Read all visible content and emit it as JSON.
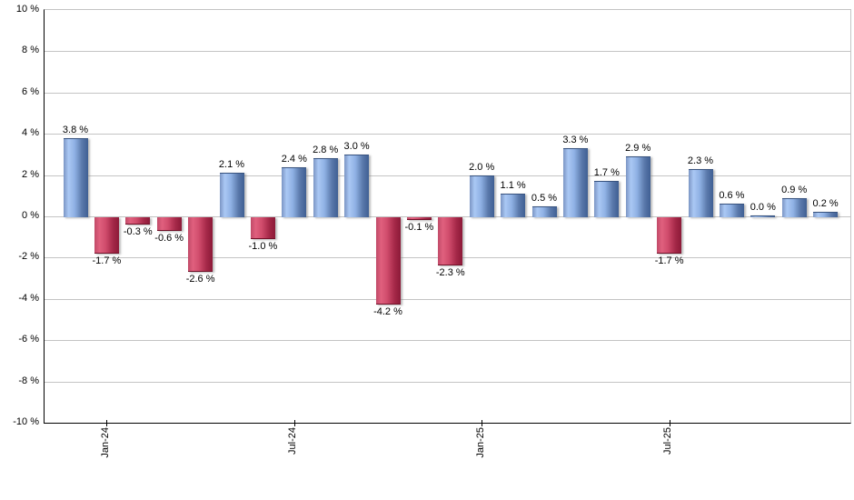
{
  "chart_data": {
    "type": "bar",
    "title": "",
    "unit": "%",
    "values": [
      3.8,
      -1.7,
      -0.3,
      -0.6,
      -2.6,
      2.1,
      -1.0,
      2.4,
      2.8,
      3.0,
      -4.2,
      -0.1,
      -2.3,
      2.0,
      1.1,
      0.5,
      3.3,
      1.7,
      2.9,
      -1.7,
      2.3,
      0.6,
      0.0,
      0.9,
      0.2
    ],
    "bar_labels": [
      "3.8 %",
      "-1.7 %",
      "-0.3 %",
      "-0.6 %",
      "-2.6 %",
      "2.1 %",
      "-1.0 %",
      "2.4 %",
      "2.8 %",
      "3.0 %",
      "-4.2 %",
      "-0.1 %",
      "-2.3 %",
      "2.0 %",
      "1.1 %",
      "0.5 %",
      "3.3 %",
      "1.7 %",
      "2.9 %",
      "-1.7 %",
      "2.3 %",
      "0.6 %",
      "0.0 %",
      "0.9 %",
      "0.2 %"
    ],
    "x_ticks": [
      {
        "label": "Jan-24",
        "bar_index": 1
      },
      {
        "label": "Jul-24",
        "bar_index": 7
      },
      {
        "label": "Jan-25",
        "bar_index": 13
      },
      {
        "label": "Jul-25",
        "bar_index": 19
      }
    ],
    "y_tick_labels": [
      "10 %",
      "8 %",
      "6 %",
      "4 %",
      "2 %",
      "0 %",
      "-2 %",
      "-4 %",
      "-6 %",
      "-8 %",
      "-10 %"
    ],
    "ylim": [
      -10,
      10
    ],
    "grid": true,
    "legend_position": "none",
    "colors": {
      "positive_bar_highlight": "#aac8f4",
      "positive_bar_dark": "#3f5f93",
      "negative_bar_highlight": "#e0607e",
      "negative_bar_dark": "#8c1a38",
      "gridline": "#c4c4c4",
      "axis": "#000000",
      "label_text": "#000000",
      "background": "#ffffff"
    }
  }
}
